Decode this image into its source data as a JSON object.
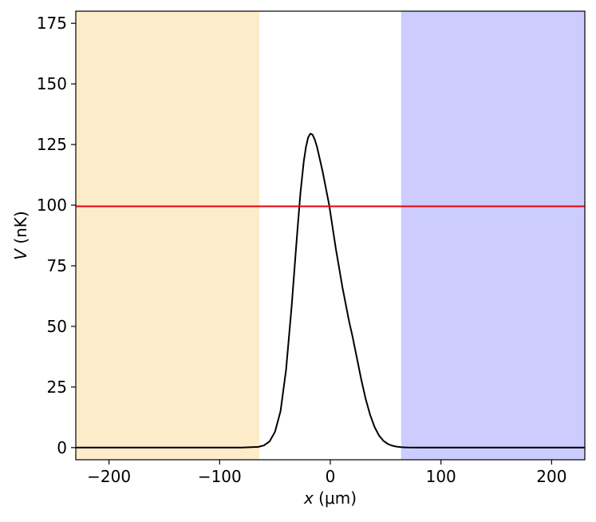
{
  "chart_data": {
    "type": "line",
    "title": "",
    "xlabel_var": "x",
    "xlabel_unit": " (μm)",
    "ylabel_var": "V",
    "ylabel_unit": " (nK)",
    "xlim": [
      -230,
      230
    ],
    "ylim": [
      -5,
      180
    ],
    "xticks": [
      -200,
      -100,
      0,
      100,
      200
    ],
    "xtick_labels": [
      "−200",
      "−100",
      "0",
      "100",
      "200"
    ],
    "yticks": [
      0,
      25,
      50,
      75,
      100,
      125,
      150,
      175
    ],
    "ytick_labels": [
      "0",
      "25",
      "50",
      "75",
      "100",
      "125",
      "150",
      "175"
    ],
    "grid": false,
    "legend": "none",
    "shaded_regions": [
      {
        "x_start": -230,
        "x_end": -64,
        "color": "#fdebc9"
      },
      {
        "x_start": 64,
        "x_end": 230,
        "color": "#ccccff"
      }
    ],
    "hline": {
      "y": 99.5,
      "color": "#e8000b"
    },
    "series": [
      {
        "color": "#000000",
        "x": [
          -230,
          -100,
          -80,
          -65,
          -60,
          -55,
          -50,
          -45,
          -40,
          -35,
          -30,
          -27,
          -24,
          -22,
          -20,
          -18,
          -16,
          -14,
          -12,
          -10,
          -7,
          -4,
          -1,
          2,
          5,
          8,
          11,
          14,
          17,
          20,
          24,
          28,
          32,
          36,
          40,
          44,
          48,
          52,
          56,
          60,
          65,
          70,
          80,
          100,
          230
        ],
        "y": [
          0,
          0,
          0,
          0.3,
          0.9,
          2.5,
          6.5,
          15,
          32,
          58,
          88,
          105,
          118,
          124,
          128,
          129.5,
          129,
          127,
          124,
          120,
          114,
          107,
          100,
          91,
          82,
          74,
          66,
          59,
          52,
          46,
          37,
          28,
          20,
          13.5,
          8.5,
          5,
          2.8,
          1.5,
          0.8,
          0.4,
          0.15,
          0.05,
          0,
          0,
          0
        ]
      }
    ]
  }
}
